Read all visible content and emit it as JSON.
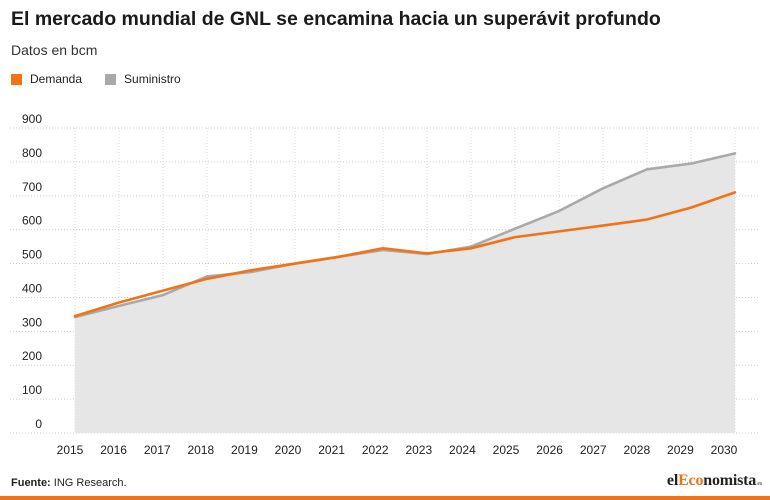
{
  "title": "El mercado mundial de GNL se encamina hacia un superávit profundo",
  "subtitle": "Datos en bcm",
  "colors": {
    "demand": "#f47216",
    "supply": "#a9a9a9",
    "area": "#e6e6e6"
  },
  "footer": {
    "source_label": "Fuente:",
    "source_text": "ING Research."
  },
  "brand": {
    "part1": "el",
    "part2": "Eco",
    "part3": "nomista",
    "suffix": ".es"
  },
  "chart_data": {
    "type": "area",
    "x": [
      "2015",
      "2016",
      "2017",
      "2018",
      "2019",
      "2020",
      "2021",
      "2022",
      "2023",
      "2024",
      "2025",
      "2026",
      "2027",
      "2028",
      "2029",
      "2030"
    ],
    "x_tick_labels": [
      "2015",
      "2016",
      "2017",
      "2018",
      "2019",
      "2020",
      "2021",
      "2022",
      "2023",
      "2024",
      "2025",
      "2026",
      "2027",
      "2028",
      "2029",
      "2030"
    ],
    "ylim": [
      0,
      900
    ],
    "y_ticks": [
      "0",
      "100",
      "200",
      "300",
      "400",
      "500",
      "600",
      "700",
      "800",
      "900"
    ],
    "grid": true,
    "legend_position": "top-left",
    "series": [
      {
        "name": "Demanda",
        "color": "#f47216",
        "values": [
          345,
          385,
          420,
          455,
          480,
          500,
          520,
          545,
          530,
          545,
          578,
          595,
          612,
          630,
          665,
          710
        ]
      },
      {
        "name": "Suministro",
        "color": "#a9a9a9",
        "values": [
          342,
          375,
          407,
          462,
          475,
          500,
          520,
          540,
          528,
          550,
          603,
          655,
          722,
          778,
          795,
          825
        ]
      }
    ],
    "xlabel": "",
    "ylabel": ""
  }
}
